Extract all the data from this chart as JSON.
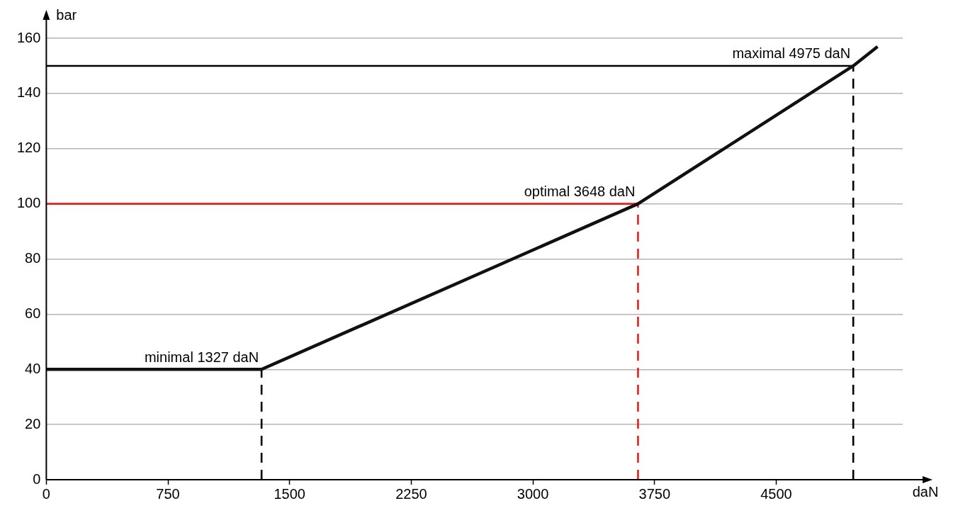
{
  "chart_data": {
    "type": "line",
    "xlabel": "daN",
    "ylabel": "bar",
    "xlim": [
      0,
      5280
    ],
    "ylim": [
      0,
      160
    ],
    "xticks": [
      0,
      750,
      1500,
      2250,
      3000,
      3750,
      4500
    ],
    "yticks": [
      0,
      20,
      40,
      60,
      80,
      100,
      120,
      140,
      160
    ],
    "grid": "y",
    "legend": false,
    "marker": "none",
    "series": [
      {
        "color": "#000000",
        "x": [
          0,
          4975
        ],
        "values": [
          150,
          150
        ],
        "line_style": "solid"
      },
      {
        "color": "#e2231a",
        "x": [
          0,
          3648
        ],
        "values": [
          100,
          100
        ],
        "line_style": "solid"
      },
      {
        "color": "#000000",
        "x": [
          1327,
          1327
        ],
        "values": [
          0,
          40
        ],
        "line_style": "dashed"
      },
      {
        "color": "#e2231a",
        "x": [
          3648,
          3648
        ],
        "values": [
          0,
          100
        ],
        "line_style": "dashed"
      },
      {
        "color": "#000000",
        "x": [
          4975,
          4975
        ],
        "values": [
          0,
          150
        ],
        "line_style": "dashed"
      },
      {
        "color": "#111111",
        "x": [
          0,
          1327,
          3648,
          4975,
          5125
        ],
        "values": [
          40,
          40,
          100,
          150,
          157
        ],
        "line_style": "solid"
      }
    ],
    "annotations": [
      {
        "text": "minimal 1327 daN",
        "x": 1327,
        "y": 40
      },
      {
        "text": "optimal 3648 daN",
        "x": 3648,
        "y": 100
      },
      {
        "text": "maximal 4975 daN",
        "x": 4975,
        "y": 150
      }
    ]
  }
}
